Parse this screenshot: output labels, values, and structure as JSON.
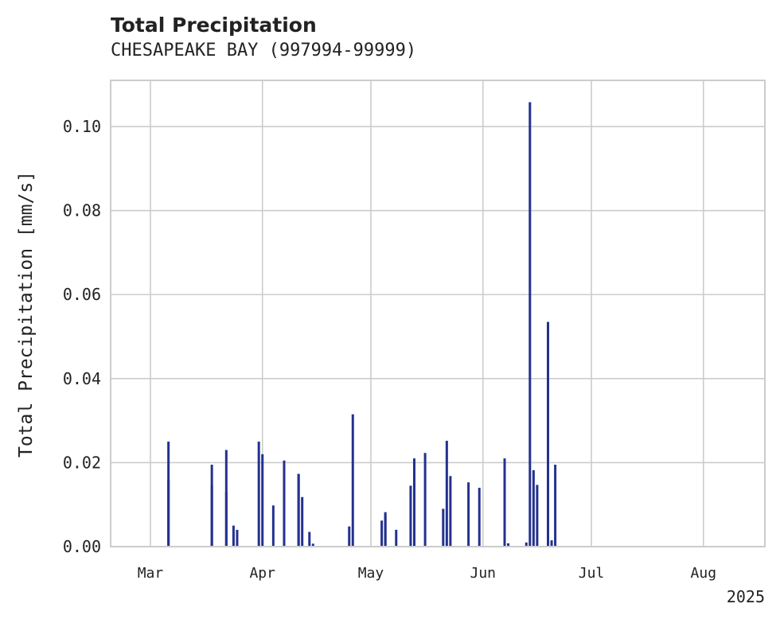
{
  "chart_data": {
    "type": "bar",
    "title": "Total Precipitation",
    "subtitle": "CHESAPEAKE BAY (997994-99999)",
    "xlabel": "",
    "ylabel": "Total Precipitation [mm/s]",
    "x_axis_year_label": "2025",
    "x_ticks": [
      "2025-03-01",
      "2025-04-01",
      "2025-05-01",
      "2025-06-01",
      "2025-07-01",
      "2025-08-01"
    ],
    "x_tick_labels": [
      "Mar",
      "Apr",
      "May",
      "Jun",
      "Jul",
      "Aug"
    ],
    "xlim": [
      "2025-02-18",
      "2025-08-18"
    ],
    "y_ticks": [
      0.0,
      0.02,
      0.04,
      0.06,
      0.08,
      0.1
    ],
    "y_tick_labels": [
      "0.00",
      "0.02",
      "0.04",
      "0.06",
      "0.08",
      "0.10"
    ],
    "ylim": [
      0,
      0.111
    ],
    "grid": true,
    "color": "#24318f",
    "series": [
      {
        "x": [
          "2025-03-06",
          "2025-03-06",
          "2025-03-18",
          "2025-03-18",
          "2025-03-22",
          "2025-03-22",
          "2025-03-24",
          "2025-03-25",
          "2025-03-31",
          "2025-04-01",
          "2025-04-04",
          "2025-04-07",
          "2025-04-07",
          "2025-04-11",
          "2025-04-11",
          "2025-04-12",
          "2025-04-14",
          "2025-04-15",
          "2025-04-25",
          "2025-04-26",
          "2025-05-04",
          "2025-05-05",
          "2025-05-05",
          "2025-05-08",
          "2025-05-12",
          "2025-05-13",
          "2025-05-13",
          "2025-05-16",
          "2025-05-21",
          "2025-05-22",
          "2025-05-23",
          "2025-05-28",
          "2025-05-31",
          "2025-06-07",
          "2025-06-07",
          "2025-06-08",
          "2025-06-14",
          "2025-06-13",
          "2025-06-15",
          "2025-06-16",
          "2025-06-19",
          "2025-06-20",
          "2025-06-21"
        ],
        "values": [
          0.025,
          0.016,
          0.0195,
          0.0145,
          0.023,
          0.013,
          0.005,
          0.004,
          0.025,
          0.022,
          0.0098,
          0.0205,
          0.019,
          0.0173,
          0.0173,
          0.0118,
          0.0035,
          0.0007,
          0.0048,
          0.0315,
          0.0062,
          0.0077,
          0.0082,
          0.004,
          0.0145,
          0.021,
          0.0173,
          0.0223,
          0.009,
          0.0252,
          0.0168,
          0.0153,
          0.014,
          0.021,
          0.0008,
          0.0008,
          0.1058,
          0.001,
          0.0182,
          0.0147,
          0.0535,
          0.0015,
          0.0195
        ]
      }
    ]
  }
}
